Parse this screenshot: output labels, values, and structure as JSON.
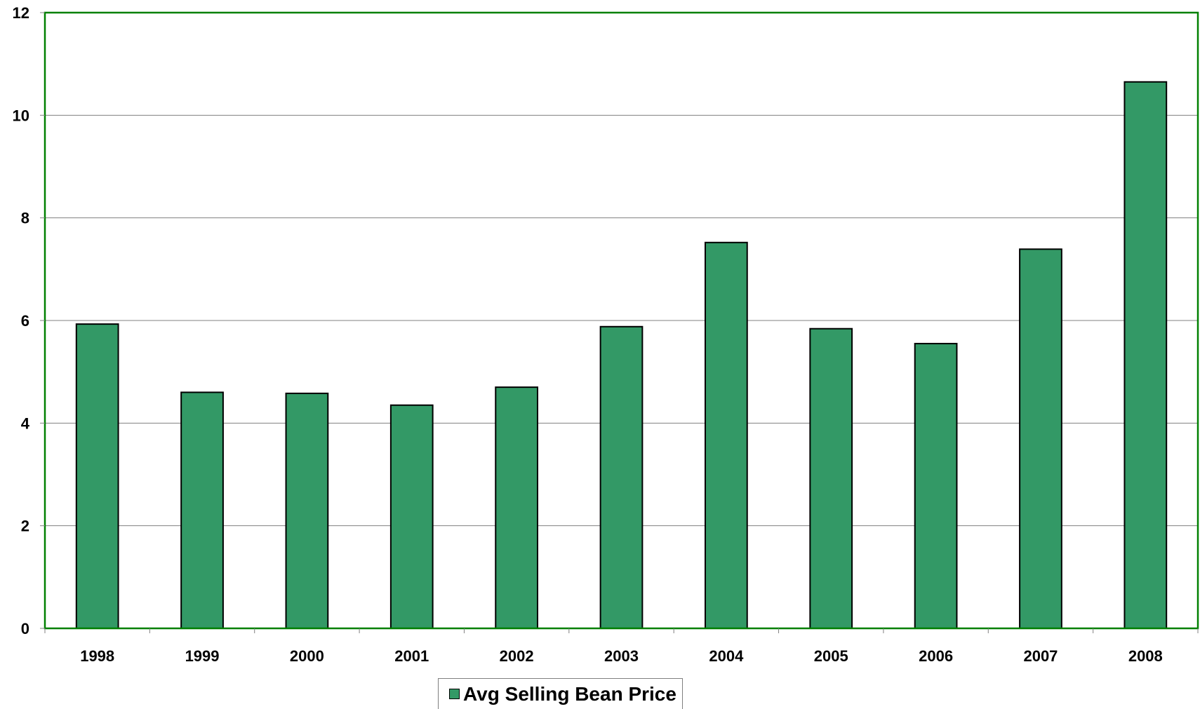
{
  "chart_data": {
    "type": "bar",
    "categories": [
      "1998",
      "1999",
      "2000",
      "2001",
      "2002",
      "2003",
      "2004",
      "2005",
      "2006",
      "2007",
      "2008"
    ],
    "series": [
      {
        "name": "Avg Selling Bean Price",
        "values": [
          5.93,
          4.6,
          4.58,
          4.35,
          4.7,
          5.88,
          7.52,
          5.84,
          5.55,
          7.39,
          10.65
        ]
      }
    ],
    "yticks": [
      "0",
      "2",
      "4",
      "6",
      "8",
      "10",
      "12"
    ],
    "ylim": [
      0,
      12
    ],
    "title": "",
    "xlabel": "",
    "ylabel": "",
    "grid": true,
    "legend_position": "bottom",
    "colors": {
      "bar": "#339966",
      "plot_border": "#008000",
      "grid": "#808080"
    }
  }
}
